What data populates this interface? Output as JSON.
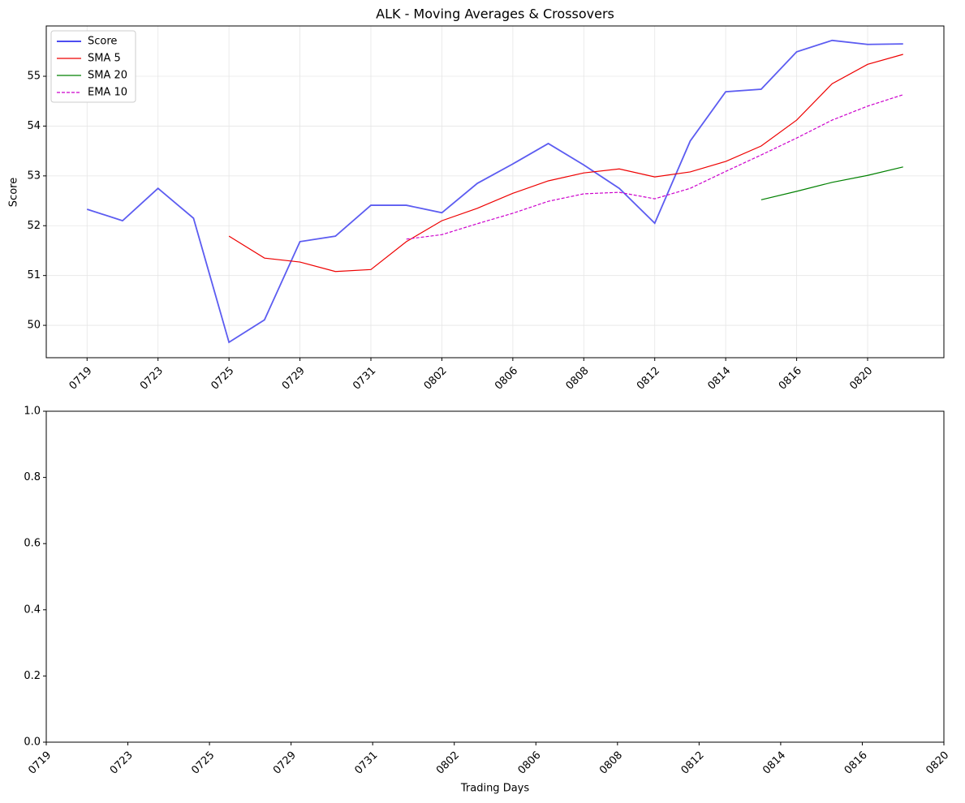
{
  "chart_data": [
    {
      "type": "line",
      "title": "ALK - Moving Averages & Crossovers",
      "ylabel": "Score",
      "categories": [
        "0719",
        null,
        "0723",
        null,
        "0725",
        null,
        "0729",
        null,
        "0731",
        null,
        "0802",
        null,
        "0806",
        null,
        "0808",
        null,
        "0812",
        null,
        "0814",
        null,
        "0816",
        null,
        "0820",
        null
      ],
      "series": [
        {
          "name": "Score",
          "color": "#3333ee",
          "linestyle": "solid",
          "values": [
            52.33,
            52.1,
            52.75,
            52.15,
            49.66,
            50.11,
            51.68,
            51.79,
            52.41,
            52.41,
            52.26,
            52.85,
            53.24,
            53.65,
            53.22,
            52.75,
            52.05,
            53.7,
            54.69,
            54.74,
            55.49,
            55.72,
            55.64,
            55.65
          ]
        },
        {
          "name": "SMA 5",
          "color": "#ee0000",
          "linestyle": "solid",
          "values": [
            null,
            null,
            null,
            null,
            51.79,
            51.35,
            51.27,
            51.08,
            51.12,
            51.68,
            52.1,
            52.35,
            52.65,
            52.9,
            53.06,
            53.14,
            52.98,
            53.08,
            53.29,
            53.6,
            54.12,
            54.85,
            55.24,
            55.44
          ]
        },
        {
          "name": "SMA 20",
          "color": "#008000",
          "linestyle": "solid",
          "values": [
            null,
            null,
            null,
            null,
            null,
            null,
            null,
            null,
            null,
            null,
            null,
            null,
            null,
            null,
            null,
            null,
            null,
            null,
            null,
            52.52,
            52.69,
            52.87,
            53.01,
            53.18
          ]
        },
        {
          "name": "EMA 10",
          "color": "#cc00cc",
          "linestyle": "dashed",
          "values": [
            null,
            null,
            null,
            null,
            null,
            null,
            null,
            null,
            null,
            51.73,
            51.82,
            52.04,
            52.25,
            52.49,
            52.64,
            52.67,
            52.54,
            52.75,
            53.09,
            53.42,
            53.76,
            54.12,
            54.4,
            54.63
          ]
        }
      ],
      "ylim": [
        49.35,
        56.01
      ],
      "yticks": [
        50,
        51,
        52,
        53,
        54,
        55
      ],
      "grid": true,
      "legend": "upper-left"
    },
    {
      "type": "line",
      "xlabel": "Trading Days",
      "categories": [
        "0719",
        "0723",
        "0725",
        "0729",
        "0731",
        "0802",
        "0806",
        "0808",
        "0812",
        "0814",
        "0816",
        "0820"
      ],
      "series": [],
      "ylim": [
        0,
        1
      ],
      "yticks": [
        {
          "value": 0,
          "label": "0.0"
        },
        {
          "value": 0.2,
          "label": "0.2"
        },
        {
          "value": 0.4,
          "label": "0.4"
        },
        {
          "value": 0.6,
          "label": "0.6"
        },
        {
          "value": 0.8,
          "label": "0.8"
        },
        {
          "value": 1,
          "label": "1.0"
        }
      ],
      "grid": false
    }
  ]
}
